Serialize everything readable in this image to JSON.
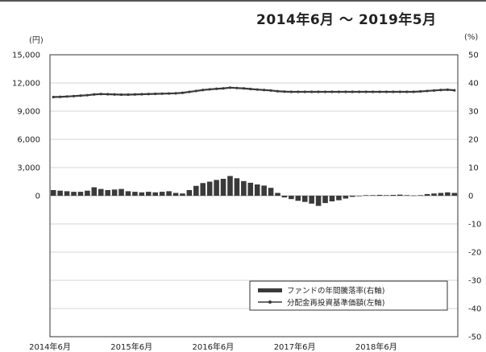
{
  "period_label": "2014年6月 〜 2019年5月",
  "chart_data": {
    "type": "bar+line",
    "left_axis": {
      "unit": "(円)",
      "ylim": [
        -15000,
        15000
      ],
      "labeled_ticks": [
        15000,
        12000,
        9000,
        6000,
        3000,
        0
      ],
      "labeled_tick_labels": [
        "15,000",
        "12,000",
        "9,000",
        "6,000",
        "3,000",
        "0"
      ]
    },
    "right_axis": {
      "unit": "(%)",
      "ylim": [
        -50,
        50
      ],
      "ticks": [
        50,
        40,
        30,
        20,
        10,
        0,
        -10,
        -20,
        -30,
        -40,
        -50
      ]
    },
    "x_tick_labels": [
      "2014年6月",
      "2015年6月",
      "2016年6月",
      "2017年6月",
      "2018年6月"
    ],
    "grid": true,
    "legend_placement": "bottom-right",
    "series": [
      {
        "name": "ファンドの年間騰落率(右軸)",
        "type": "bar",
        "axis": "right",
        "values": [
          2,
          1.8,
          1.6,
          1.4,
          1.4,
          1.8,
          3.0,
          2.4,
          2.0,
          2.2,
          2.4,
          1.6,
          1.4,
          1.2,
          1.4,
          1.2,
          1.4,
          1.6,
          1.0,
          0.8,
          2.0,
          3.5,
          4.5,
          5.0,
          5.6,
          6.0,
          7.0,
          6.2,
          5.2,
          4.6,
          4.0,
          3.6,
          2.8,
          1.0,
          -0.6,
          -1.2,
          -1.8,
          -2.2,
          -2.8,
          -3.6,
          -2.6,
          -2.0,
          -1.6,
          -1.0,
          -0.4,
          0.0,
          0.2,
          0.2,
          0.3,
          0.2,
          0.3,
          0.4,
          0.2,
          0.1,
          0.2,
          0.6,
          0.8,
          1.0,
          1.2,
          1.0
        ]
      },
      {
        "name": "分配金再投資基準価額(左軸)",
        "type": "line",
        "axis": "left",
        "values": [
          10500,
          10520,
          10560,
          10600,
          10650,
          10700,
          10780,
          10820,
          10800,
          10780,
          10760,
          10760,
          10780,
          10800,
          10820,
          10840,
          10860,
          10880,
          10900,
          10950,
          11050,
          11150,
          11250,
          11320,
          11380,
          11420,
          11500,
          11460,
          11420,
          11360,
          11300,
          11250,
          11200,
          11120,
          11080,
          11060,
          11060,
          11060,
          11060,
          11060,
          11060,
          11060,
          11060,
          11060,
          11060,
          11060,
          11060,
          11060,
          11060,
          11060,
          11060,
          11060,
          11060,
          11060,
          11100,
          11150,
          11200,
          11250,
          11280,
          11220
        ]
      }
    ]
  }
}
